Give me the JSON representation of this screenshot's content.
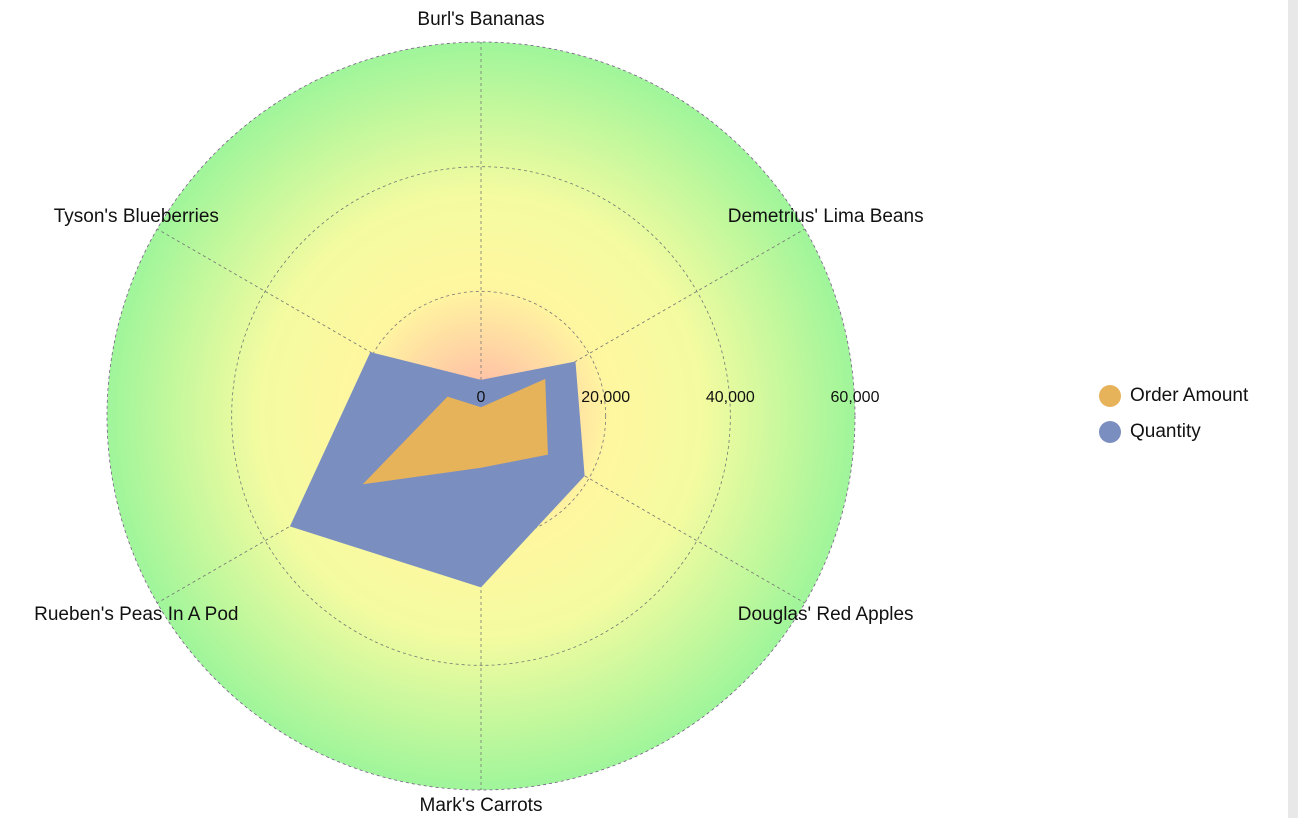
{
  "chart_data": {
    "type": "radar",
    "categories": [
      "Burl's Bananas",
      "Demetrius' Lima Beans",
      "Douglas' Red Apples",
      "Mark's Carrots",
      "Rueben's Peas In A Pod",
      "Tyson's Blueberries"
    ],
    "series": [
      {
        "name": "Quantity",
        "color": "#7a8fc0",
        "values": [
          5800,
          17500,
          19200,
          27500,
          35400,
          20500
        ]
      },
      {
        "name": "Order Amount",
        "color": "#e6b25a",
        "values": [
          1400,
          11900,
          12400,
          8300,
          21900,
          6200
        ]
      }
    ],
    "legend_order": [
      "Order Amount",
      "Quantity"
    ],
    "rlim": [
      0,
      60000
    ],
    "rticks": [
      0,
      {
        "value": 20000,
        "label": "20,000"
      },
      {
        "value": 40000,
        "label": "40,000"
      },
      {
        "value": 60000,
        "label": "60,000"
      }
    ],
    "grid": true
  }
}
